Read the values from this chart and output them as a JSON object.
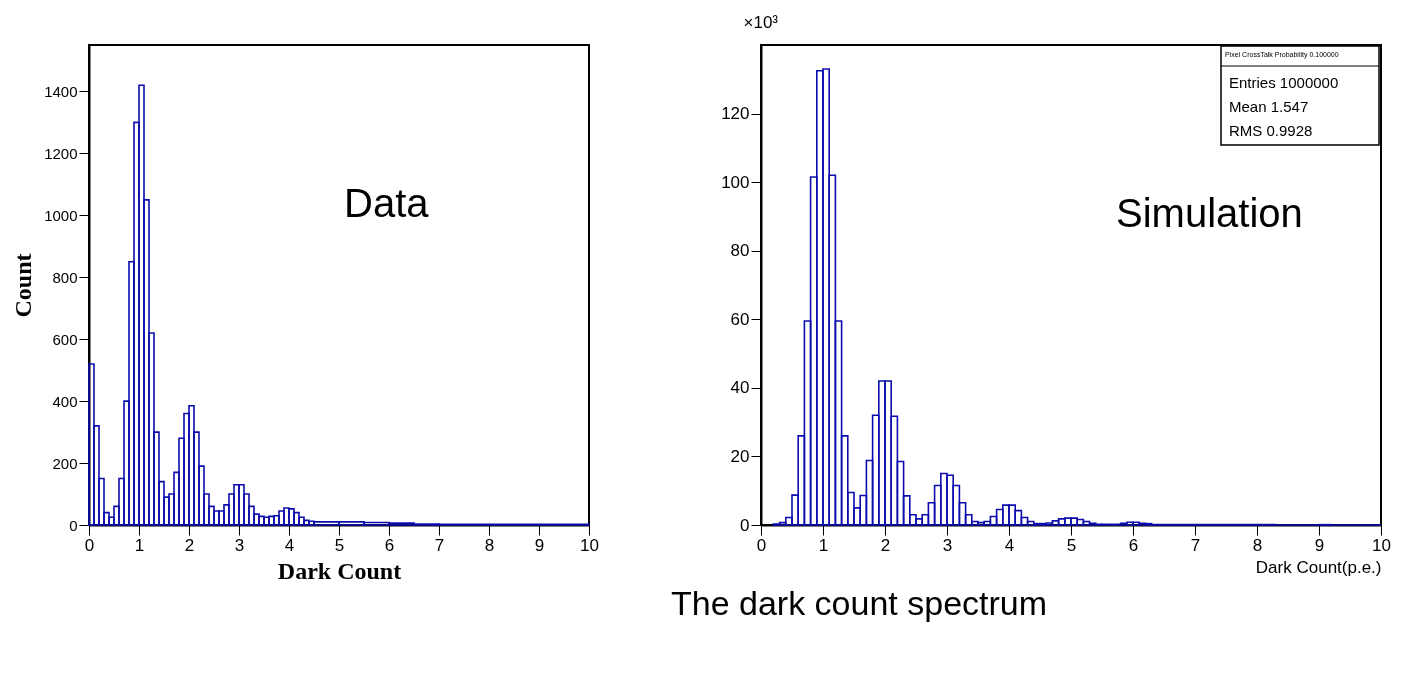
{
  "chart_data": [
    {
      "type": "histogram",
      "xlabel": "Dark Count",
      "ylabel": "Count",
      "color": "#0c0cae",
      "bins": [
        0,
        0.1,
        0.2,
        0.3,
        0.4,
        0.5,
        0.6,
        0.7,
        0.8,
        0.9,
        1.0,
        1.1,
        1.2,
        1.3,
        1.4,
        1.5,
        1.6,
        1.7,
        1.8,
        1.9,
        2.0,
        2.1,
        2.2,
        2.3,
        2.4,
        2.5,
        2.6,
        2.7,
        2.8,
        2.9,
        3.0,
        3.1,
        3.2,
        3.3,
        3.4,
        3.5,
        3.6,
        3.7,
        3.8,
        3.9,
        4.0,
        4.1,
        4.2,
        4.3,
        4.4,
        4.5,
        5.0,
        5.5,
        6.0,
        6.5,
        7.0,
        10
      ],
      "values": [
        520,
        320,
        150,
        40,
        25,
        60,
        150,
        400,
        850,
        1300,
        1420,
        1050,
        620,
        300,
        140,
        90,
        100,
        170,
        280,
        360,
        385,
        300,
        190,
        100,
        60,
        45,
        45,
        65,
        100,
        130,
        130,
        100,
        60,
        35,
        28,
        25,
        28,
        30,
        45,
        55,
        52,
        40,
        25,
        15,
        12,
        10,
        10,
        8,
        6,
        3,
        2
      ],
      "xlim": [
        0,
        10
      ],
      "ylim": [
        0,
        1550
      ],
      "xticks": [
        0,
        1,
        2,
        3,
        4,
        5,
        6,
        7,
        8,
        9,
        10
      ],
      "yticks": [
        0,
        200,
        400,
        600,
        800,
        {
          "value": 1000,
          "label": "1000"
        },
        {
          "value": 1200,
          "label": "1200"
        },
        {
          "value": 1400,
          "label": "1400"
        }
      ],
      "annotations": [
        "Data"
      ]
    },
    {
      "type": "histogram",
      "xlabel": "Dark Count(p.e.)",
      "ylabel": "×10³",
      "color": "#0c0cae",
      "bins": [
        0.2,
        0.3,
        0.4,
        0.5,
        0.6,
        0.7,
        0.8,
        0.9,
        1.0,
        1.1,
        1.2,
        1.3,
        1.4,
        1.5,
        1.6,
        1.7,
        1.8,
        1.9,
        2.0,
        2.1,
        2.2,
        2.3,
        2.4,
        2.5,
        2.6,
        2.7,
        2.8,
        2.9,
        3.0,
        3.1,
        3.2,
        3.3,
        3.4,
        3.5,
        3.6,
        3.7,
        3.8,
        3.9,
        4.0,
        4.1,
        4.2,
        4.3,
        4.4,
        4.5,
        4.6,
        4.7,
        4.8,
        4.9,
        5.0,
        5.1,
        5.2,
        5.3,
        5.4,
        5.5,
        5.8,
        5.9,
        6.0,
        6.1,
        6.2,
        6.3,
        8.3,
        9.0,
        9.2,
        10
      ],
      "values": [
        0.3,
        0.7,
        2.2,
        8.7,
        26,
        59.5,
        101.5,
        132.5,
        133,
        102,
        59.5,
        26,
        9.5,
        5,
        8.6,
        18.8,
        32,
        42,
        42,
        31.7,
        18.5,
        8.5,
        3,
        1.8,
        3,
        6.5,
        11.5,
        15,
        14.5,
        11.5,
        6.5,
        3,
        1,
        0.7,
        1,
        2.5,
        4.5,
        5.8,
        5.8,
        4.2,
        2.2,
        1,
        0.4,
        0.4,
        0.6,
        1.2,
        1.8,
        2,
        2,
        1.6,
        1,
        0.5,
        0.2,
        0.2,
        0.5,
        0.8,
        0.8,
        0.5,
        0.4,
        0.1,
        0,
        0.1,
        0
      ],
      "xlim": [
        0,
        10
      ],
      "ylim": [
        0,
        140
      ],
      "xticks": [
        0,
        1,
        2,
        3,
        4,
        5,
        6,
        7,
        8,
        9,
        10
      ],
      "yticks": [
        0,
        20,
        40,
        60,
        80,
        100,
        120
      ],
      "annotations": [
        "Simulation",
        "Pixel CrossTalk Probability 0.100000",
        "Entries 1000000",
        "Mean 1.547",
        "RMS 0.9928",
        "The dark count spectrum"
      ]
    }
  ]
}
